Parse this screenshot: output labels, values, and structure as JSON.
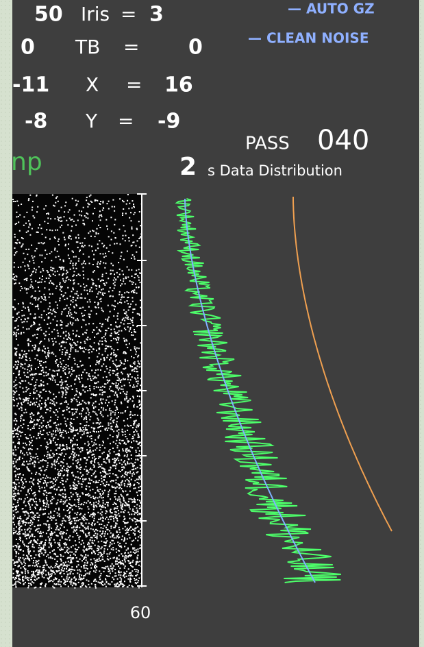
{
  "readouts": [
    {
      "left": "50",
      "label": "Iris",
      "eq": "=",
      "value": "3"
    },
    {
      "left": "0",
      "label": "TB",
      "eq": "=",
      "value": "0"
    },
    {
      "left": "-11",
      "label": "X",
      "eq": "=",
      "value": "16"
    },
    {
      "left": "-8",
      "label": "Y",
      "eq": "=",
      "value": "-9"
    }
  ],
  "legend": [
    "— AUTO GZ",
    "— CLEAN NOISE"
  ],
  "pass": {
    "label": "PASS",
    "number": "040"
  },
  "distribution": {
    "count": "2",
    "label": "s Data Distribution"
  },
  "cropped_label": "np",
  "axis_label": "60"
}
